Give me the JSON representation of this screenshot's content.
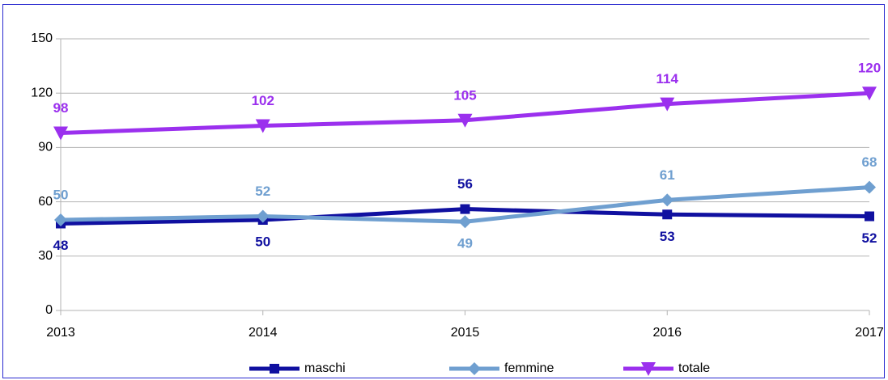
{
  "chart_data": {
    "type": "line",
    "categories": [
      "2013",
      "2014",
      "2015",
      "2016",
      "2017"
    ],
    "series": [
      {
        "name": "maschi",
        "color": "#1010a0",
        "marker": "square",
        "values": [
          48,
          50,
          56,
          53,
          52
        ]
      },
      {
        "name": "femmine",
        "color": "#6f9fd0",
        "marker": "diamond",
        "values": [
          50,
          52,
          49,
          61,
          68
        ]
      },
      {
        "name": "totale",
        "color": "#9b30ee",
        "marker": "triangle-down",
        "values": [
          98,
          102,
          105,
          114,
          120
        ]
      }
    ],
    "ylim": [
      0,
      150
    ],
    "yticks": [
      0,
      30,
      60,
      90,
      120,
      150
    ],
    "grid": true,
    "legend": "bottom"
  }
}
